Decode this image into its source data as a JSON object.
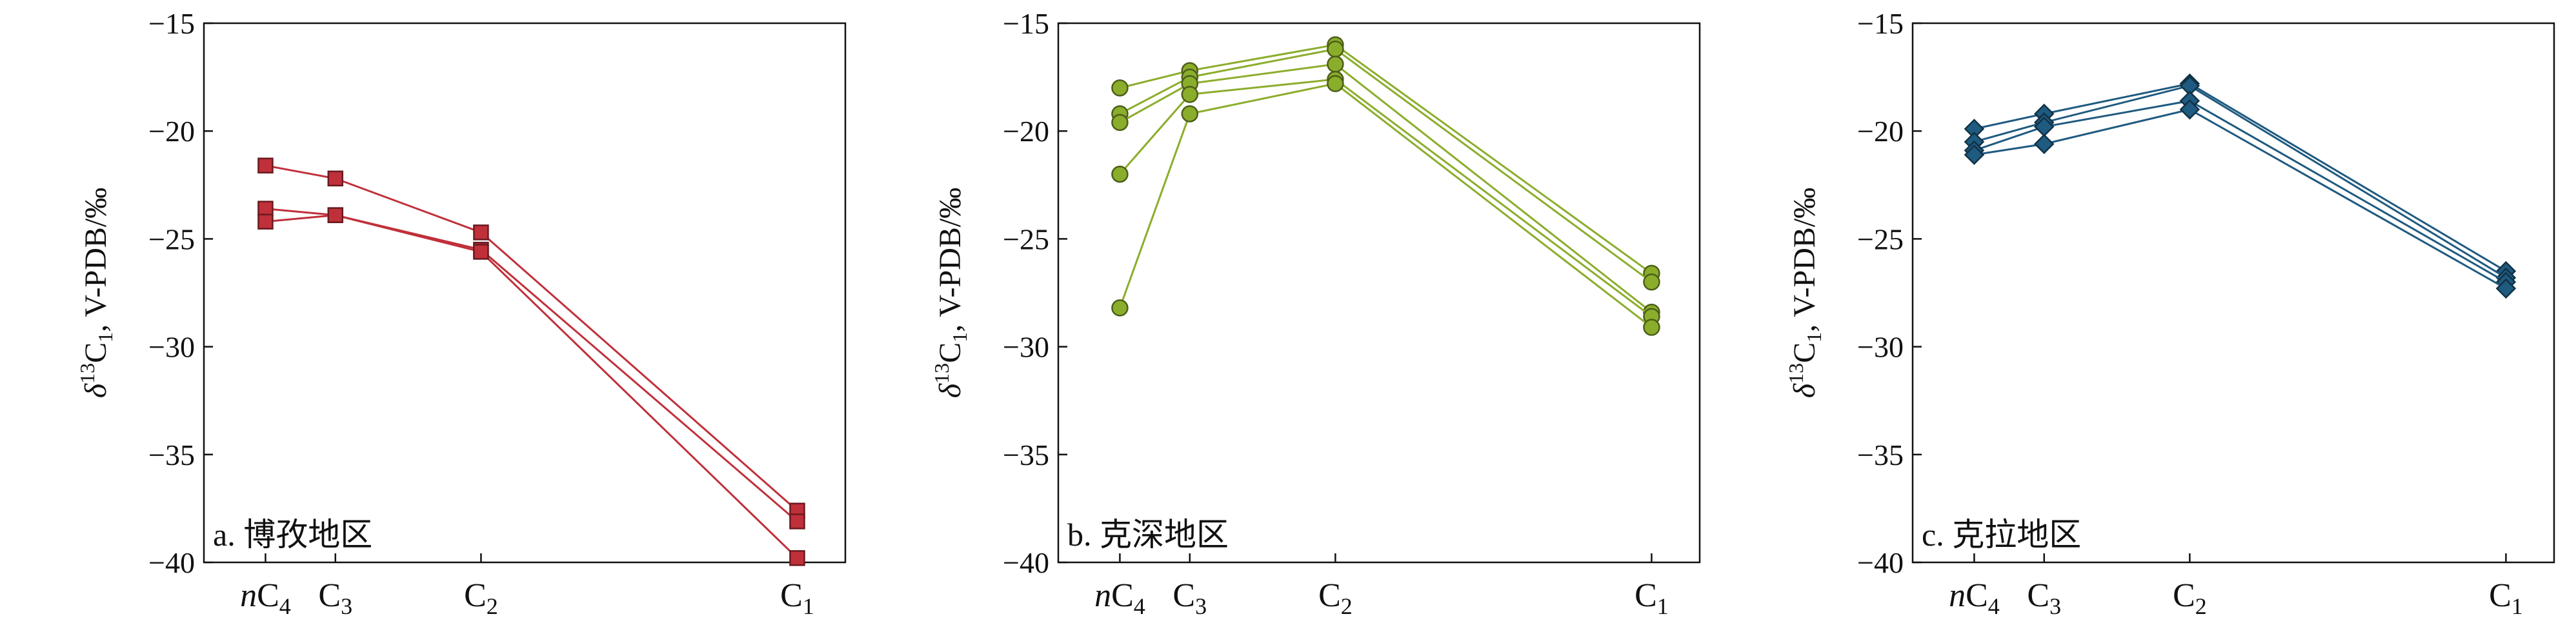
{
  "chart_data": [
    {
      "type": "line",
      "panel_label": "a. 博孜地区",
      "ylabel": "δ13C1, V-PDB/‰",
      "categories": [
        "nC4",
        "C3",
        "C2",
        "C1"
      ],
      "ylim": [
        -40,
        -15
      ],
      "yticks": [
        -15,
        -20,
        -25,
        -30,
        -35,
        -40
      ],
      "grid": false,
      "color": "#c0303a",
      "marker": "square",
      "series": [
        {
          "values": [
            -21.6,
            -22.2,
            -24.7,
            -37.6
          ]
        },
        {
          "values": [
            -23.6,
            -23.9,
            -25.5,
            -38.1
          ]
        },
        {
          "values": [
            -24.2,
            -23.9,
            -25.6,
            -39.8
          ]
        }
      ]
    },
    {
      "type": "line",
      "panel_label": "b. 克深地区",
      "ylabel": "δ13C1, V-PDB/‰",
      "categories": [
        "nC4",
        "C3",
        "C2",
        "C1"
      ],
      "ylim": [
        -40,
        -15
      ],
      "yticks": [
        -15,
        -20,
        -25,
        -30,
        -35,
        -40
      ],
      "grid": false,
      "color": "#8bad2c",
      "marker": "circle",
      "series": [
        {
          "values": [
            -18.0,
            -17.2,
            -16.0,
            -26.6
          ]
        },
        {
          "values": [
            -19.2,
            -17.5,
            -16.2,
            -27.0
          ]
        },
        {
          "values": [
            -19.6,
            -17.8,
            -16.9,
            -28.4
          ]
        },
        {
          "values": [
            -22.0,
            -18.3,
            -17.6,
            -28.6
          ]
        },
        {
          "values": [
            -28.2,
            -19.2,
            -17.8,
            -29.1
          ]
        }
      ]
    },
    {
      "type": "line",
      "panel_label": "c. 克拉地区",
      "ylabel": "δ13C1, V-PDB/‰",
      "categories": [
        "nC4",
        "C3",
        "C2",
        "C1"
      ],
      "ylim": [
        -40,
        -15
      ],
      "yticks": [
        -15,
        -20,
        -25,
        -30,
        -35,
        -40
      ],
      "grid": false,
      "color": "#1f5a80",
      "marker": "diamond",
      "series": [
        {
          "values": [
            -19.9,
            -19.2,
            -17.8,
            -26.5
          ]
        },
        {
          "values": [
            -20.5,
            -19.6,
            -17.9,
            -26.8
          ]
        },
        {
          "values": [
            -20.9,
            -19.8,
            -18.6,
            -27.0
          ]
        },
        {
          "values": [
            -21.1,
            -20.6,
            -19.0,
            -27.3
          ]
        }
      ]
    }
  ]
}
